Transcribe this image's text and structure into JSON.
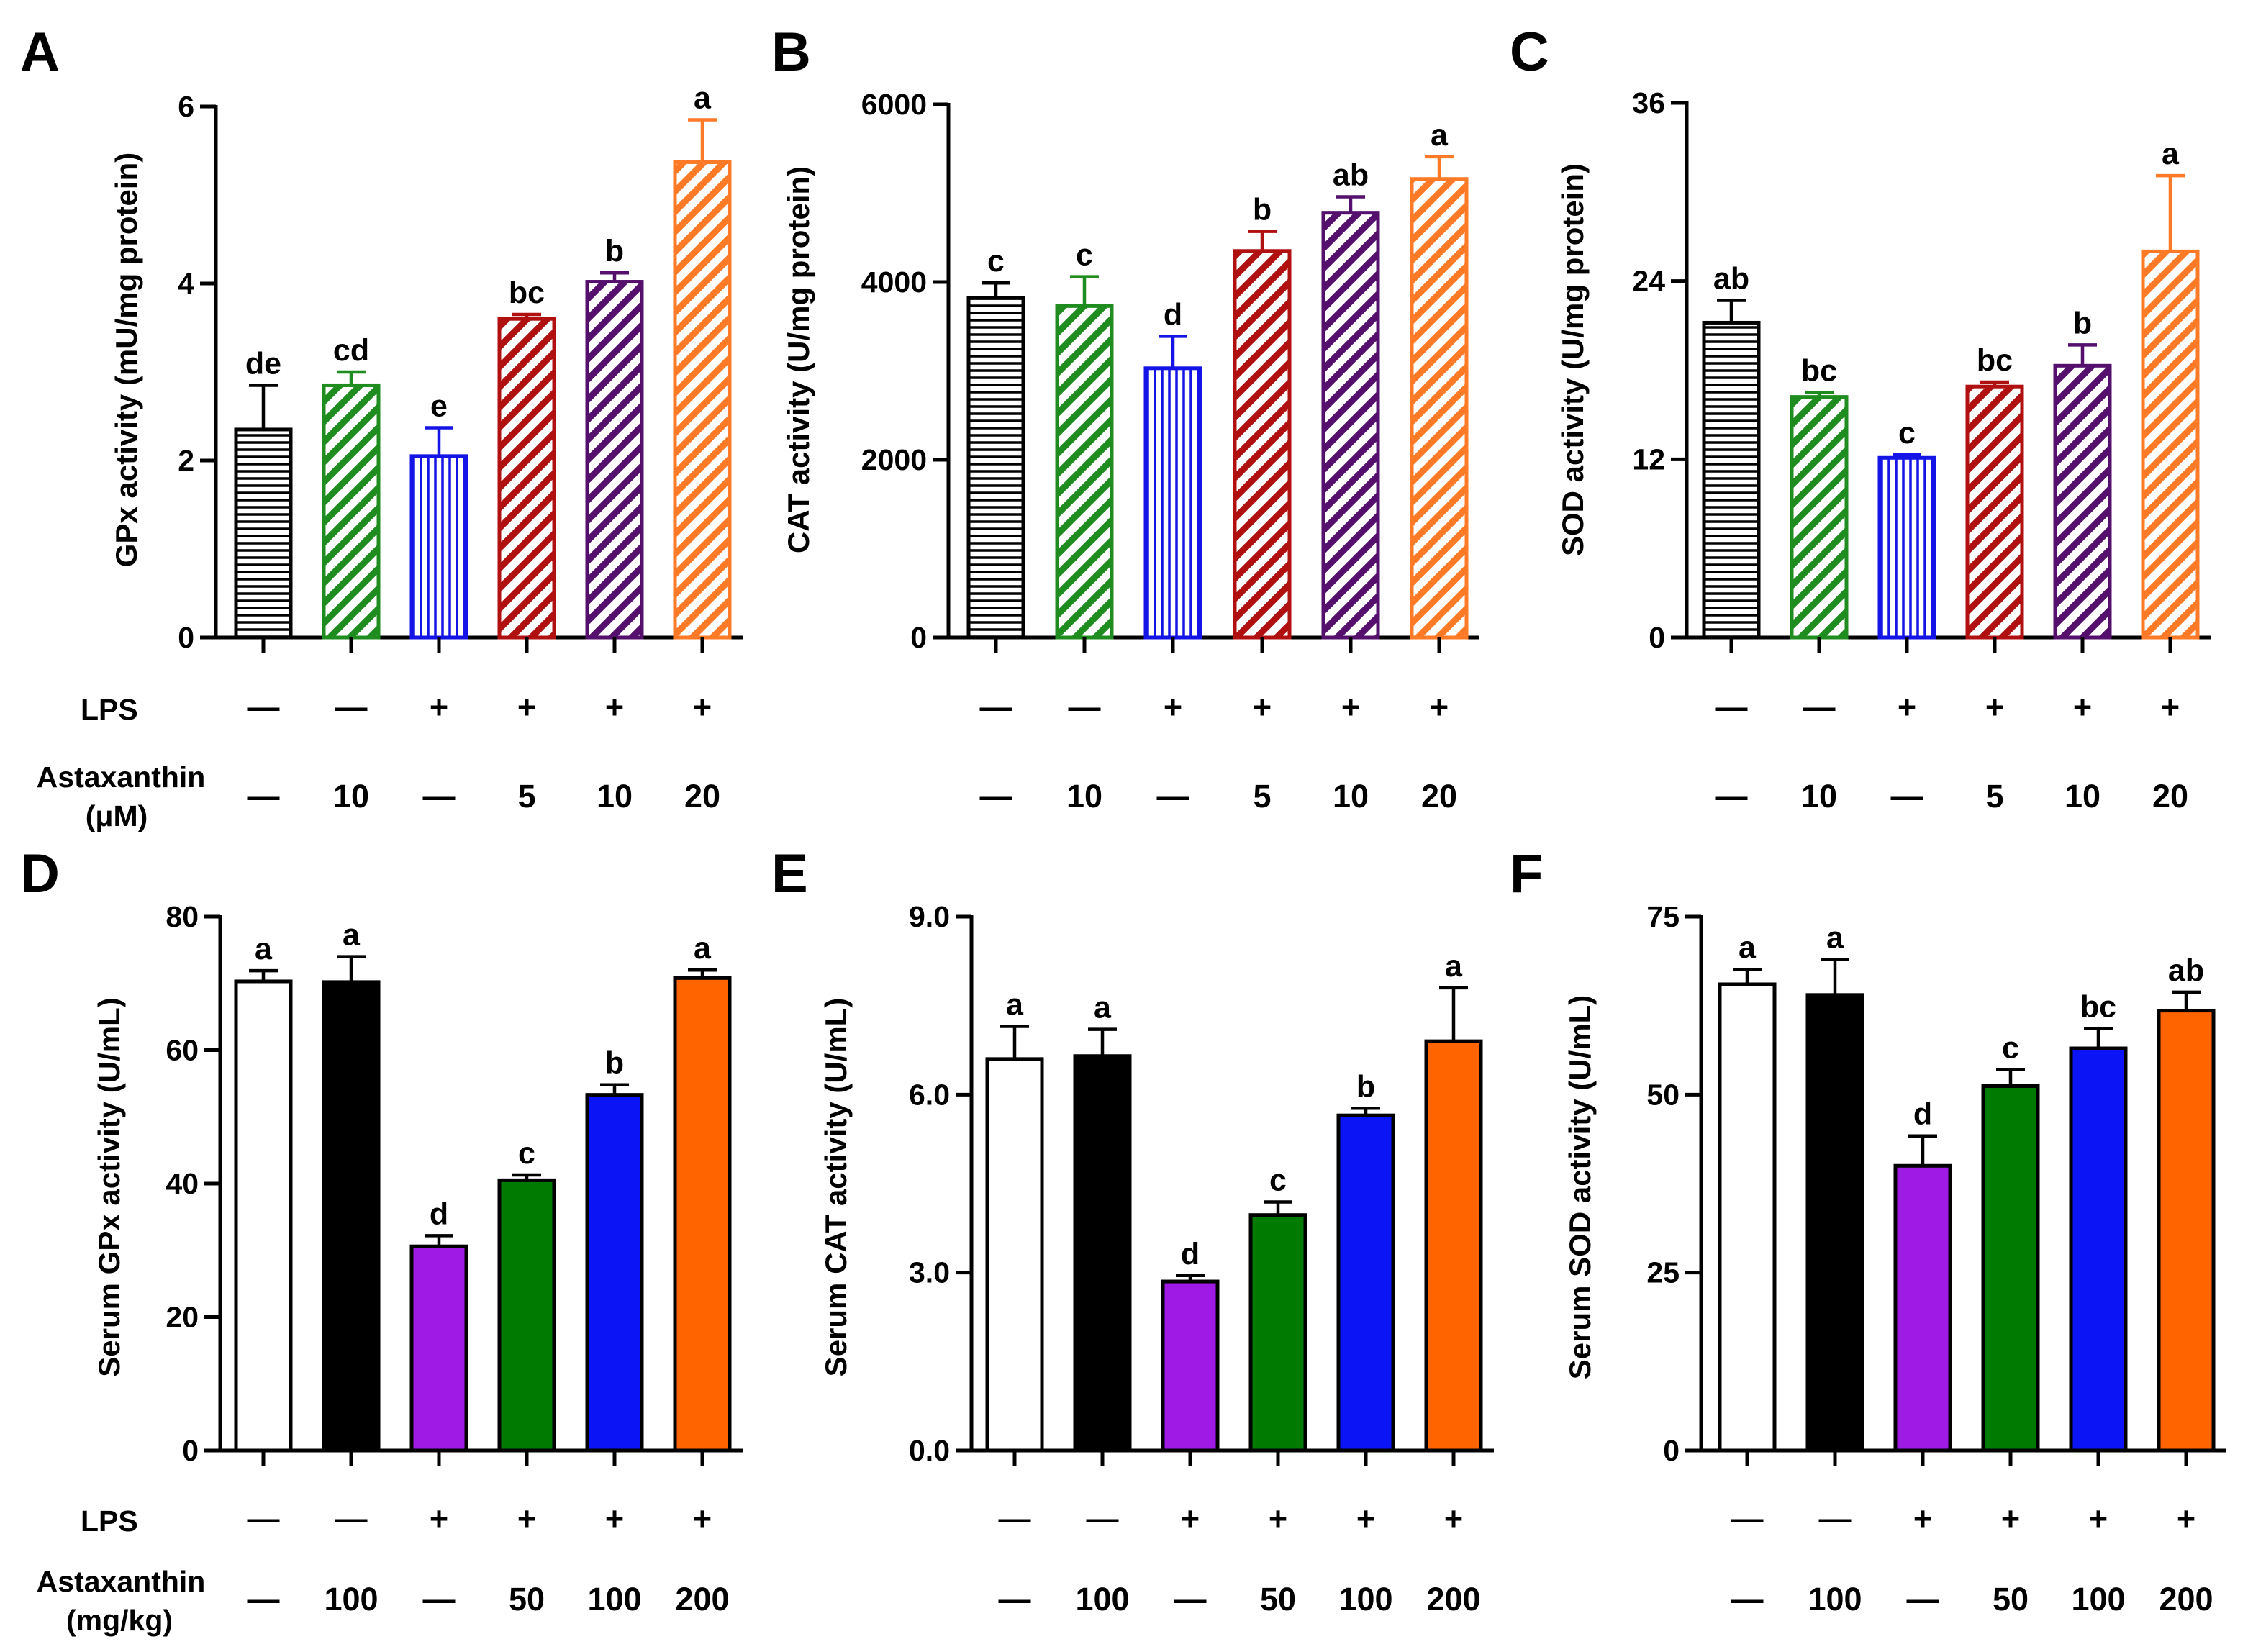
{
  "figure": {
    "colors": {
      "black": "#000000",
      "green": "#1e8c1e",
      "blue": "#1414e6",
      "dark_red": "#b01010",
      "purple": "#55106e",
      "orange": "#ff7a26",
      "violet": "#a01ae6",
      "in_vivo_green": "#007a00",
      "in_vivo_blue": "#0a14f5",
      "in_vivo_orange": "#ff6400",
      "white": "#ffffff"
    },
    "rows": [
      {
        "treatment_labels": {
          "lps_label": "LPS",
          "astaxanthin_label": "Astaxanthin",
          "unit_label": "(μM)"
        },
        "lps": [
          "—",
          "—",
          "+",
          "+",
          "+",
          "+"
        ],
        "astaxanthin": [
          "—",
          "10",
          "—",
          "5",
          "10",
          "20"
        ]
      },
      {
        "treatment_labels": {
          "lps_label": "LPS",
          "astaxanthin_label": "Astaxanthin",
          "unit_label": "(mg/kg)"
        },
        "lps": [
          "—",
          "—",
          "+",
          "+",
          "+",
          "+"
        ],
        "astaxanthin": [
          "—",
          "100",
          "—",
          "50",
          "100",
          "200"
        ]
      }
    ]
  },
  "chart_data": [
    {
      "panel": "A",
      "type": "bar",
      "style": "hatched",
      "ylabel": "GPx activity (mU/mg protein)",
      "ylim": [
        0,
        6
      ],
      "yticks": [
        "0",
        "2",
        "4",
        "6"
      ],
      "values": [
        2.35,
        2.85,
        2.05,
        3.6,
        4.02,
        5.37
      ],
      "errors": [
        0.5,
        0.15,
        0.32,
        0.05,
        0.1,
        0.48
      ],
      "letters": [
        "de",
        "cd",
        "e",
        "bc",
        "b",
        "a"
      ],
      "colors": [
        "#000000",
        "#1e8c1e",
        "#1414e6",
        "#b01010",
        "#55106e",
        "#ff7a26"
      ],
      "patterns": [
        "h",
        "d",
        "v",
        "d",
        "d",
        "d"
      ]
    },
    {
      "panel": "B",
      "type": "bar",
      "style": "hatched",
      "ylabel": "CAT activity (U/mg protein)",
      "ylim": [
        0,
        6000
      ],
      "yticks": [
        "0",
        "2000",
        "4000",
        "6000"
      ],
      "values": [
        3820,
        3730,
        3030,
        4350,
        4780,
        5160
      ],
      "errors": [
        170,
        330,
        360,
        220,
        180,
        250
      ],
      "letters": [
        "c",
        "c",
        "d",
        "b",
        "ab",
        "a"
      ],
      "colors": [
        "#000000",
        "#1e8c1e",
        "#1414e6",
        "#b01010",
        "#55106e",
        "#ff7a26"
      ],
      "patterns": [
        "h",
        "d",
        "v",
        "d",
        "d",
        "d"
      ]
    },
    {
      "panel": "C",
      "type": "bar",
      "style": "hatched",
      "ylabel": "SOD activity (U/mg protein)",
      "ylim": [
        0,
        36
      ],
      "yticks": [
        "0",
        "12",
        "24",
        "36"
      ],
      "values": [
        21.2,
        16.2,
        12.1,
        16.9,
        18.3,
        26
      ],
      "errors": [
        1.5,
        0.3,
        0.2,
        0.3,
        1.4,
        5.1
      ],
      "letters": [
        "ab",
        "bc",
        "c",
        "bc",
        "b",
        "a"
      ],
      "colors": [
        "#000000",
        "#1e8c1e",
        "#1414e6",
        "#b01010",
        "#55106e",
        "#ff7a26"
      ],
      "patterns": [
        "h",
        "d",
        "v",
        "d",
        "d",
        "d"
      ]
    },
    {
      "panel": "D",
      "type": "bar",
      "style": "solid",
      "ylabel": "Serum GPx activity (U/mL)",
      "ylim": [
        0,
        80
      ],
      "yticks": [
        "0",
        "20",
        "40",
        "60",
        "80"
      ],
      "values": [
        70.3,
        70.2,
        30.6,
        40.5,
        53.3,
        70.8
      ],
      "errors": [
        1.6,
        3.8,
        1.6,
        0.8,
        1.5,
        1.2
      ],
      "letters": [
        "a",
        "a",
        "d",
        "c",
        "b",
        "a"
      ],
      "colors": [
        "#ffffff",
        "#000000",
        "#a01ae6",
        "#007a00",
        "#0a14f5",
        "#ff6400"
      ]
    },
    {
      "panel": "E",
      "type": "bar",
      "style": "solid",
      "ylabel": "Serum CAT activity (U/mL)",
      "ylim": [
        0,
        9
      ],
      "yticks": [
        "0.0",
        "3.0",
        "6.0",
        "9.0"
      ],
      "values": [
        6.6,
        6.65,
        2.85,
        3.97,
        5.65,
        6.9
      ],
      "errors": [
        0.55,
        0.45,
        0.1,
        0.22,
        0.12,
        0.9
      ],
      "letters": [
        "a",
        "a",
        "d",
        "c",
        "b",
        "a"
      ],
      "colors": [
        "#ffffff",
        "#000000",
        "#a01ae6",
        "#007a00",
        "#0a14f5",
        "#ff6400"
      ]
    },
    {
      "panel": "F",
      "type": "bar",
      "style": "solid",
      "ylabel": "Serum SOD activity (U/mL)",
      "ylim": [
        0,
        75
      ],
      "yticks": [
        "0",
        "25",
        "50",
        "75"
      ],
      "values": [
        65.5,
        64,
        40,
        51.2,
        56.5,
        61.8
      ],
      "errors": [
        2.1,
        5,
        4.2,
        2.3,
        2.8,
        2.6
      ],
      "letters": [
        "a",
        "a",
        "d",
        "c",
        "bc",
        "ab"
      ],
      "colors": [
        "#ffffff",
        "#000000",
        "#a01ae6",
        "#007a00",
        "#0a14f5",
        "#ff6400"
      ]
    }
  ]
}
